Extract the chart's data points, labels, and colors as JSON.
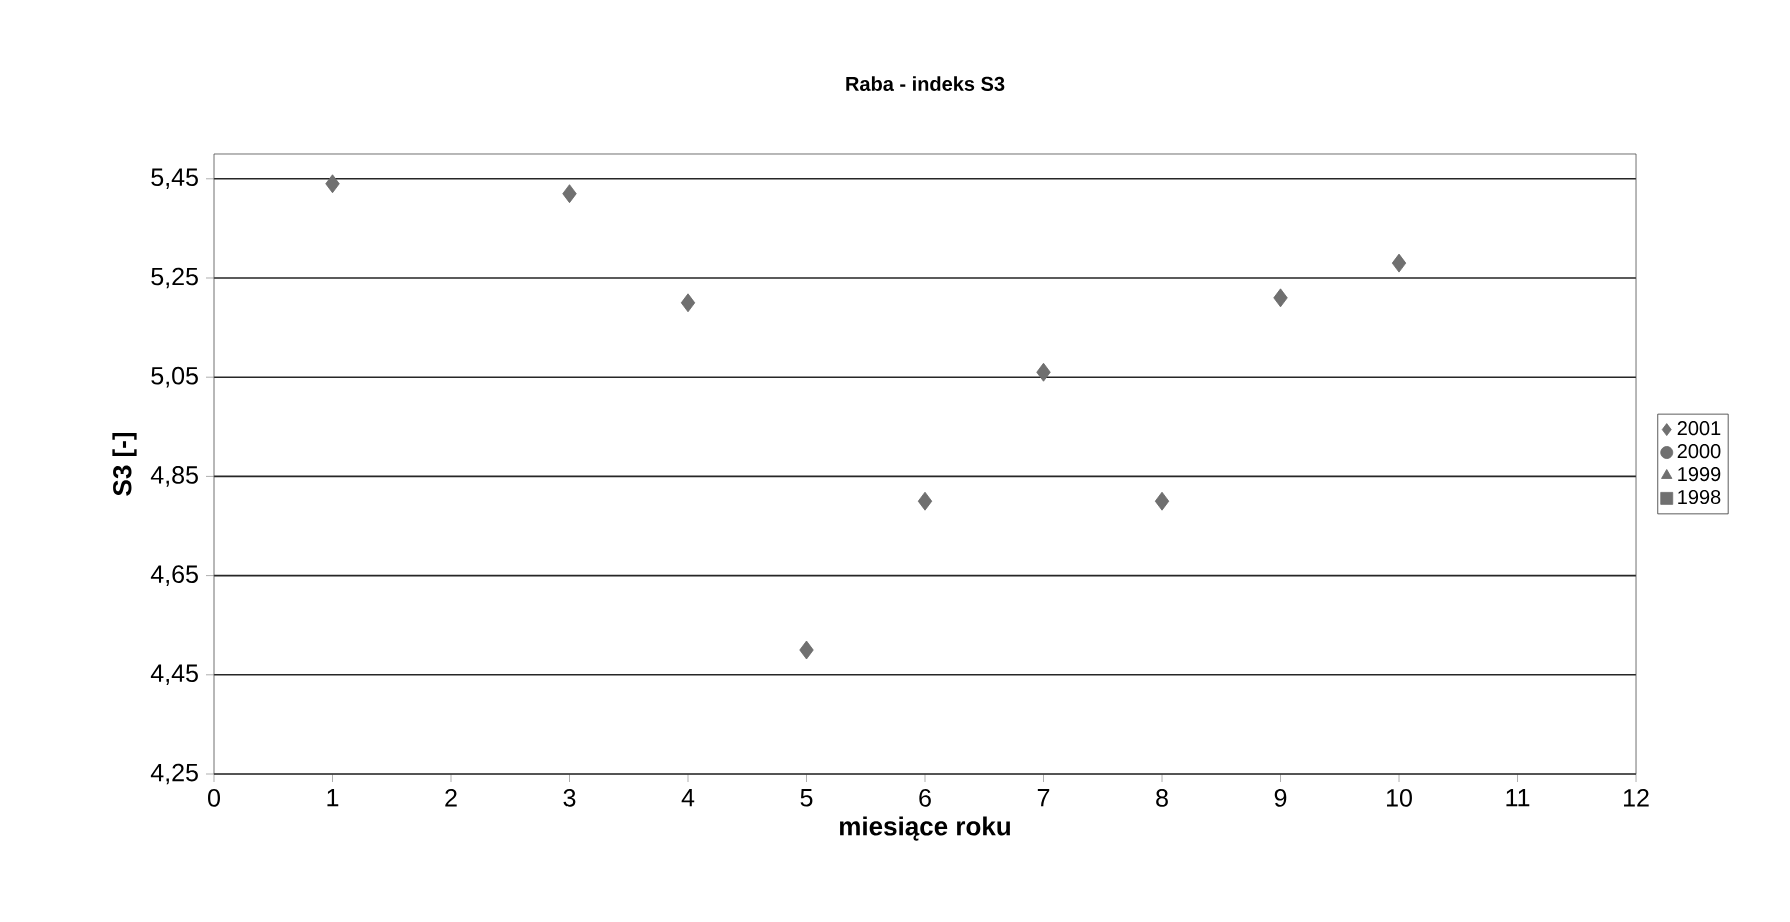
{
  "chart_data": {
    "type": "scatter",
    "title": "Raba - indeks S3",
    "xlabel": "miesiące roku",
    "ylabel": "S3 [-]",
    "x": [
      1,
      3,
      4,
      5,
      6,
      7,
      8,
      9,
      10
    ],
    "series": [
      {
        "name": "2001",
        "color": "#707070",
        "marker": "diamond",
        "values": [
          5.44,
          5.42,
          5.2,
          4.5,
          4.8,
          5.06,
          4.8,
          5.21,
          5.28
        ]
      },
      {
        "name": "2000",
        "color": "#707070",
        "marker": "circle",
        "values": [
          null,
          null,
          null,
          null,
          null,
          null,
          null,
          null,
          null
        ]
      },
      {
        "name": "1999",
        "color": "#707070",
        "marker": "triangle",
        "values": [
          null,
          null,
          null,
          null,
          null,
          null,
          null,
          null,
          null
        ]
      },
      {
        "name": "1998",
        "color": "#707070",
        "marker": "square",
        "values": [
          null,
          null,
          null,
          null,
          null,
          null,
          null,
          null,
          null
        ]
      }
    ],
    "xlim": [
      0,
      12
    ],
    "xticks": [
      0,
      1,
      2,
      3,
      4,
      5,
      6,
      7,
      8,
      9,
      10,
      11,
      12
    ],
    "ylim": [
      4.25,
      5.5
    ],
    "yticks": [
      {
        "value": 4.25,
        "label": "4,25"
      },
      {
        "value": 4.45,
        "label": "4,45"
      },
      {
        "value": 4.65,
        "label": "4,65"
      },
      {
        "value": 4.85,
        "label": "4,85"
      },
      {
        "value": 5.05,
        "label": "5,05"
      },
      {
        "value": 5.25,
        "label": "5,25"
      },
      {
        "value": 5.45,
        "label": "5,45"
      }
    ],
    "grid": "y",
    "legend": "right"
  }
}
